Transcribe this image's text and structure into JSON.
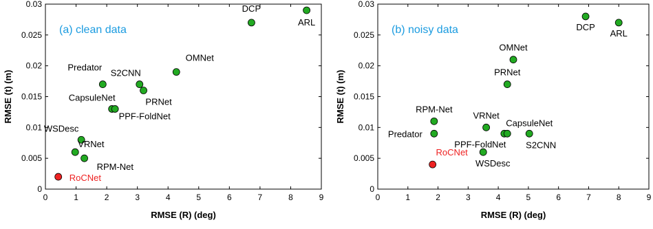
{
  "chart_data": [
    {
      "type": "scatter",
      "title": "(a) clean data",
      "xlabel": "RMSE (R) (deg)",
      "ylabel": "RMSE (t) (m)",
      "xlim": [
        0,
        9
      ],
      "ylim": [
        0,
        0.03
      ],
      "xticks": [
        "0",
        "1",
        "2",
        "3",
        "4",
        "5",
        "6",
        "7",
        "8",
        "9"
      ],
      "yticks": [
        "0",
        "0.005",
        "0.01",
        "0.015",
        "0.02",
        "0.025",
        "0.03"
      ],
      "grid": false,
      "points": [
        {
          "label": "DCP",
          "x": 6.72,
          "y": 0.027,
          "color": "#22aa22"
        },
        {
          "label": "ARL",
          "x": 8.52,
          "y": 0.029,
          "color": "#22aa22"
        },
        {
          "label": "OMNet",
          "x": 4.27,
          "y": 0.019,
          "color": "#22aa22"
        },
        {
          "label": "S2CNN",
          "x": 3.07,
          "y": 0.017,
          "color": "#22aa22"
        },
        {
          "label": "PRNet",
          "x": 3.2,
          "y": 0.016,
          "color": "#22aa22"
        },
        {
          "label": "Predator",
          "x": 1.87,
          "y": 0.017,
          "color": "#22aa22"
        },
        {
          "label": "CapsuleNet",
          "x": 2.17,
          "y": 0.013,
          "color": "#22aa22"
        },
        {
          "label": "PPF-FoldNet",
          "x": 2.27,
          "y": 0.013,
          "color": "#22aa22"
        },
        {
          "label": "WSDesc",
          "x": 1.17,
          "y": 0.008,
          "color": "#22aa22"
        },
        {
          "label": "VRNet",
          "x": 0.97,
          "y": 0.006,
          "color": "#22aa22"
        },
        {
          "label": "RPM-Net",
          "x": 1.27,
          "y": 0.005,
          "color": "#22aa22"
        },
        {
          "label": "RoCNet",
          "x": 0.42,
          "y": 0.002,
          "color": "#ee2222"
        }
      ]
    },
    {
      "type": "scatter",
      "title": "(b) noisy data",
      "xlabel": "RMSE (R) (deg)",
      "ylabel": "RMSE (t) (m)",
      "xlim": [
        0,
        9
      ],
      "ylim": [
        0,
        0.03
      ],
      "xticks": [
        "0",
        "1",
        "2",
        "3",
        "4",
        "5",
        "6",
        "7",
        "8",
        "9"
      ],
      "yticks": [
        "0",
        "0.005",
        "0.01",
        "0.015",
        "0.02",
        "0.025",
        "0.03"
      ],
      "grid": false,
      "points": [
        {
          "label": "DCP",
          "x": 6.9,
          "y": 0.028,
          "color": "#22aa22"
        },
        {
          "label": "ARL",
          "x": 8.0,
          "y": 0.027,
          "color": "#22aa22"
        },
        {
          "label": "OMNet",
          "x": 4.5,
          "y": 0.021,
          "color": "#22aa22"
        },
        {
          "label": "PRNet",
          "x": 4.3,
          "y": 0.017,
          "color": "#22aa22"
        },
        {
          "label": "RPM-Net",
          "x": 1.87,
          "y": 0.011,
          "color": "#22aa22"
        },
        {
          "label": "VRNet",
          "x": 3.6,
          "y": 0.01,
          "color": "#22aa22"
        },
        {
          "label": "Predator",
          "x": 1.87,
          "y": 0.009,
          "color": "#22aa22"
        },
        {
          "label": "PPF-FoldNet",
          "x": 4.2,
          "y": 0.009,
          "color": "#22aa22"
        },
        {
          "label": "CapsuleNet",
          "x": 4.3,
          "y": 0.009,
          "color": "#22aa22"
        },
        {
          "label": "S2CNN",
          "x": 5.03,
          "y": 0.009,
          "color": "#22aa22"
        },
        {
          "label": "WSDesc",
          "x": 3.5,
          "y": 0.006,
          "color": "#22aa22"
        },
        {
          "label": "RoCNet",
          "x": 1.82,
          "y": 0.004,
          "color": "#ee2222"
        }
      ]
    }
  ]
}
